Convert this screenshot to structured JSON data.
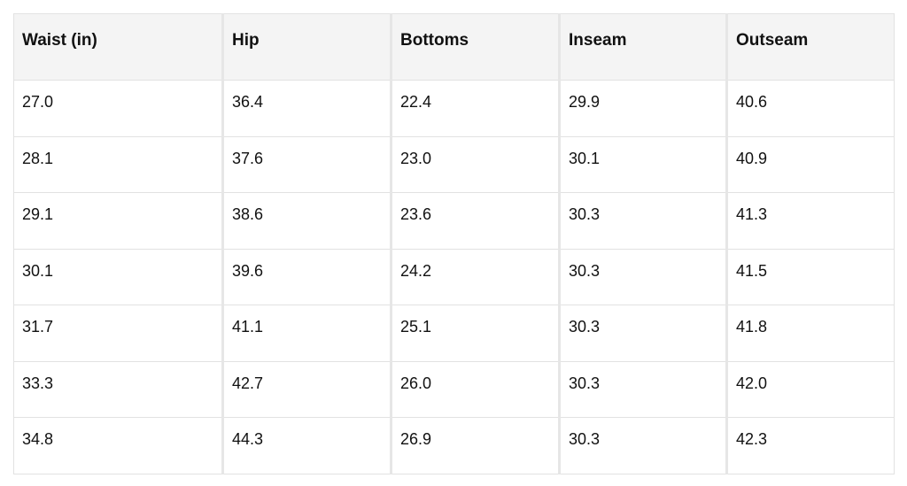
{
  "table": {
    "header": [
      "Waist (in)",
      "Hip",
      "Bottoms",
      "Inseam",
      "Outseam"
    ],
    "rows": [
      [
        "27.0",
        "36.4",
        "22.4",
        "29.9",
        "40.6"
      ],
      [
        "28.1",
        "37.6",
        "23.0",
        "30.1",
        "40.9"
      ],
      [
        "29.1",
        "38.6",
        "23.6",
        "30.3",
        "41.3"
      ],
      [
        "30.1",
        "39.6",
        "24.2",
        "30.3",
        "41.5"
      ],
      [
        "31.7",
        "41.1",
        "25.1",
        "30.3",
        "41.8"
      ],
      [
        "33.3",
        "42.7",
        "26.0",
        "30.3",
        "42.0"
      ],
      [
        "34.8",
        "44.3",
        "26.9",
        "30.3",
        "42.3"
      ]
    ]
  }
}
